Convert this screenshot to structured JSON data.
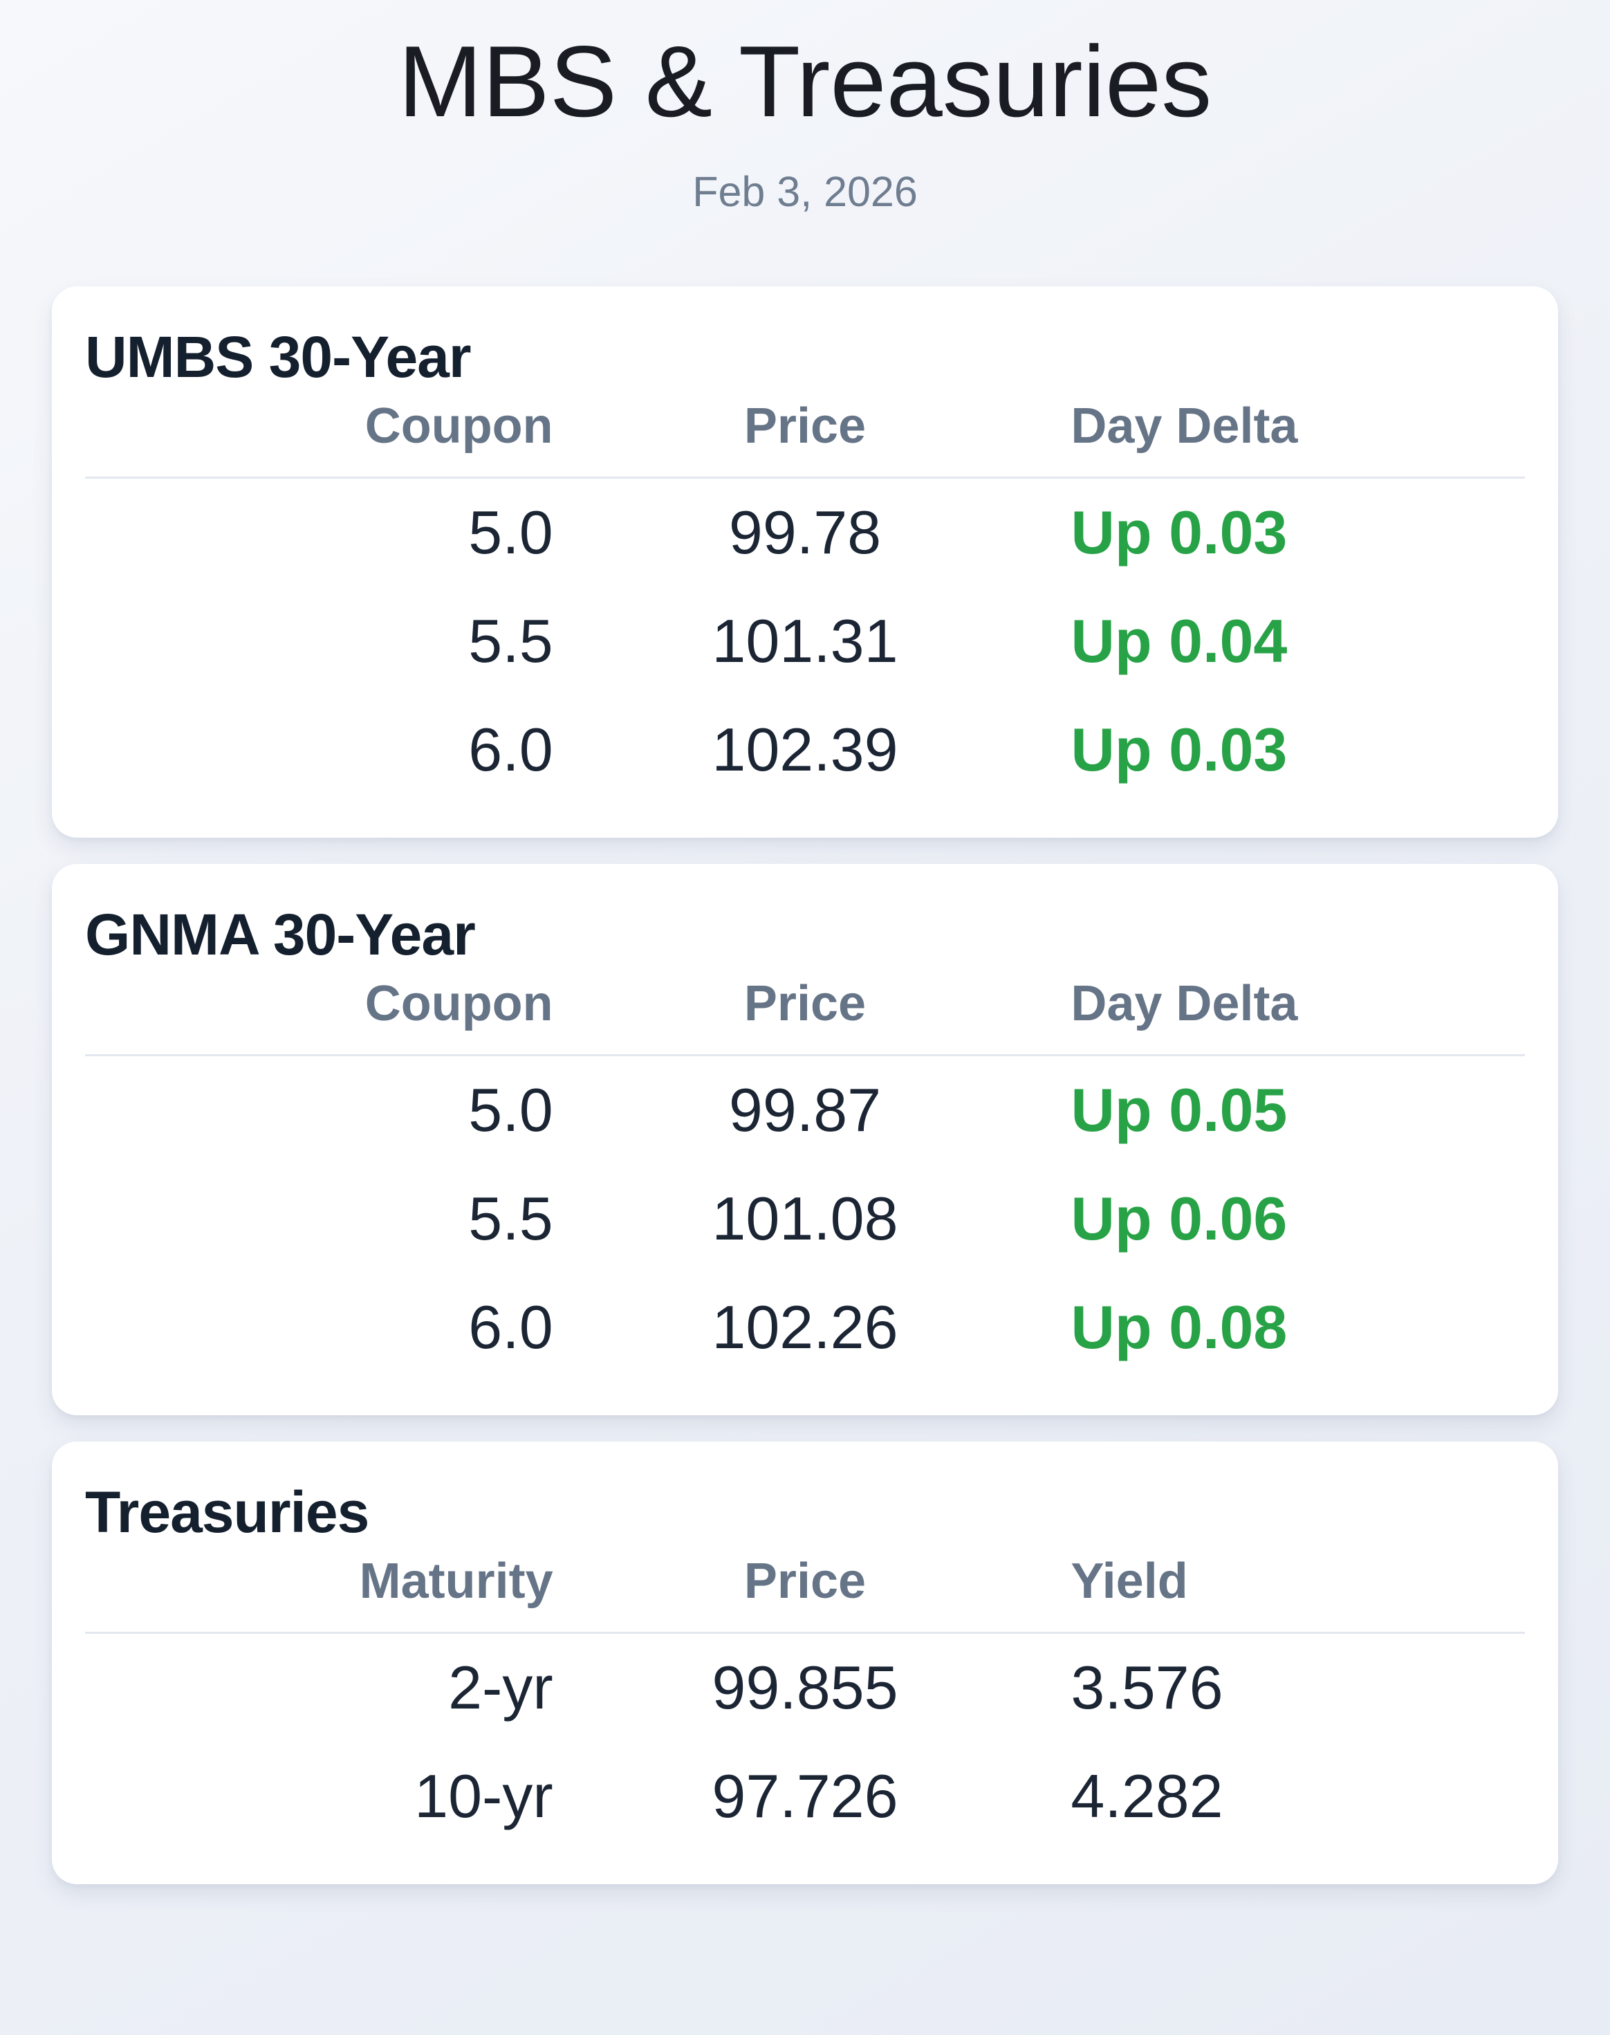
{
  "page": {
    "title": "MBS & Treasuries",
    "date": "Feb 3, 2026"
  },
  "colors": {
    "title": "#191c22",
    "muted": "#6f7d90",
    "navy": "#1b2534",
    "navy_dark": "#15202f",
    "header_gray": "#667487",
    "positive_green": "#28a246",
    "card_bg": "#ffffff"
  },
  "cards": [
    {
      "title": "UMBS 30-Year",
      "columns": [
        "Coupon",
        "Price",
        "Day Delta"
      ],
      "rows": [
        {
          "coupon": "5.0",
          "price": "99.78",
          "delta": "Up 0.03"
        },
        {
          "coupon": "5.5",
          "price": "101.31",
          "delta": "Up 0.04"
        },
        {
          "coupon": "6.0",
          "price": "102.39",
          "delta": "Up 0.03"
        }
      ]
    },
    {
      "title": "GNMA 30-Year",
      "columns": [
        "Coupon",
        "Price",
        "Day Delta"
      ],
      "rows": [
        {
          "coupon": "5.0",
          "price": "99.87",
          "delta": "Up 0.05"
        },
        {
          "coupon": "5.5",
          "price": "101.08",
          "delta": "Up 0.06"
        },
        {
          "coupon": "6.0",
          "price": "102.26",
          "delta": "Up 0.08"
        }
      ]
    },
    {
      "title": "Treasuries",
      "columns": [
        "Maturity",
        "Price",
        "Yield"
      ],
      "rows": [
        {
          "maturity": "2-yr",
          "price": "99.855",
          "yield": "3.576"
        },
        {
          "maturity": "10-yr",
          "price": "97.726",
          "yield": "4.282"
        }
      ]
    }
  ]
}
